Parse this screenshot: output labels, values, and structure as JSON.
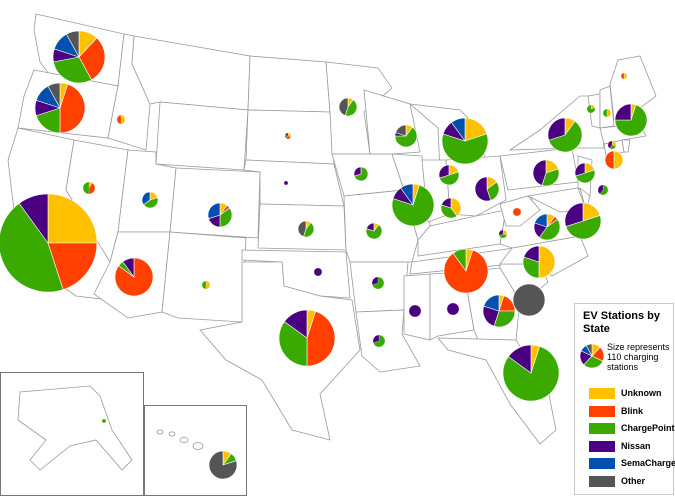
{
  "legend": {
    "title": "EV Stations by State",
    "size_note": "Size represents 110 charging stations",
    "items": [
      {
        "label": "Unknown",
        "color": "#FFC000"
      },
      {
        "label": "Blink",
        "color": "#FF4000"
      },
      {
        "label": "ChargePoint",
        "color": "#3AAA00"
      },
      {
        "label": "Nissan",
        "color": "#4B0082"
      },
      {
        "label": "SemaCharge",
        "color": "#0050B0"
      },
      {
        "label": "Other",
        "color": "#555555"
      }
    ]
  },
  "chart_data": {
    "type": "pie",
    "categories": [
      "Unknown",
      "Blink",
      "ChargePoint",
      "Nissan",
      "SemaCharge",
      "Other"
    ],
    "legend_position": "bottom-right",
    "reference_size_stations": 110,
    "states": [
      {
        "state": "WA",
        "values": [
          12,
          30,
          30,
          8,
          12,
          8
        ]
      },
      {
        "state": "OR",
        "values": [
          5,
          45,
          20,
          10,
          12,
          8
        ]
      },
      {
        "state": "CA",
        "values": [
          25,
          20,
          45,
          10,
          0,
          0
        ]
      },
      {
        "state": "AZ",
        "values": [
          0,
          85,
          5,
          10,
          0,
          0
        ]
      },
      {
        "state": "TX",
        "values": [
          5,
          45,
          35,
          15,
          0,
          0
        ]
      },
      {
        "state": "FL",
        "values": [
          5,
          0,
          80,
          15,
          0,
          0
        ]
      },
      {
        "state": "TN",
        "values": [
          5,
          85,
          10,
          0,
          0,
          0
        ]
      },
      {
        "state": "GA",
        "values": [
          5,
          20,
          30,
          25,
          20,
          0
        ]
      },
      {
        "state": "SC",
        "values": [
          0,
          0,
          0,
          0,
          0,
          100
        ]
      },
      {
        "state": "NC",
        "values": [
          50,
          0,
          30,
          20,
          0,
          0
        ]
      },
      {
        "state": "VA",
        "values": [
          10,
          5,
          45,
          20,
          20,
          0
        ]
      },
      {
        "state": "IL",
        "values": [
          5,
          0,
          75,
          10,
          10,
          0
        ]
      },
      {
        "state": "MI",
        "values": [
          20,
          0,
          60,
          10,
          10,
          0
        ]
      },
      {
        "state": "NY",
        "values": [
          10,
          0,
          60,
          30,
          0,
          0
        ]
      },
      {
        "state": "MA",
        "values": [
          5,
          0,
          70,
          25,
          0,
          0
        ]
      },
      {
        "state": "CO",
        "values": [
          10,
          5,
          35,
          20,
          30,
          0
        ]
      },
      {
        "state": "KY",
        "values": [
          40,
          0,
          40,
          20,
          0,
          0
        ]
      },
      {
        "state": "WI",
        "values": [
          10,
          0,
          65,
          5,
          0,
          20
        ]
      },
      {
        "state": "IN",
        "values": [
          20,
          0,
          50,
          30,
          0,
          0
        ]
      },
      {
        "state": "OH",
        "values": [
          15,
          0,
          30,
          55,
          0,
          0
        ]
      },
      {
        "state": "PA",
        "values": [
          20,
          0,
          35,
          45,
          0,
          0
        ]
      },
      {
        "state": "NJ",
        "values": [
          20,
          0,
          50,
          30,
          0,
          0
        ]
      },
      {
        "state": "MD",
        "values": [
          20,
          0,
          50,
          30,
          0,
          0
        ]
      },
      {
        "state": "HI",
        "values": [
          10,
          0,
          10,
          0,
          0,
          80
        ]
      },
      {
        "state": "MN",
        "values": [
          10,
          0,
          45,
          0,
          0,
          45
        ]
      },
      {
        "state": "MO",
        "values": [
          10,
          0,
          70,
          20,
          0,
          0
        ]
      },
      {
        "state": "KS",
        "values": [
          10,
          0,
          45,
          0,
          0,
          45
        ]
      },
      {
        "state": "UT",
        "values": [
          20,
          0,
          45,
          0,
          35,
          0
        ]
      },
      {
        "state": "ID",
        "values": [
          50,
          50,
          0,
          0,
          0,
          0
        ]
      },
      {
        "state": "NV",
        "values": [
          10,
          40,
          50,
          0,
          0,
          0
        ]
      },
      {
        "state": "NM",
        "values": [
          50,
          0,
          50,
          0,
          0,
          0
        ]
      },
      {
        "state": "OK",
        "values": [
          0,
          0,
          0,
          100,
          0,
          0
        ]
      },
      {
        "state": "AR",
        "values": [
          0,
          0,
          70,
          30,
          0,
          0
        ]
      },
      {
        "state": "LA",
        "values": [
          0,
          0,
          70,
          30,
          0,
          0
        ]
      },
      {
        "state": "MS",
        "values": [
          0,
          0,
          0,
          100,
          0,
          0
        ]
      },
      {
        "state": "AL",
        "values": [
          0,
          0,
          0,
          100,
          0,
          0
        ]
      },
      {
        "state": "IA",
        "values": [
          0,
          0,
          70,
          30,
          0,
          0
        ]
      },
      {
        "state": "NE",
        "values": [
          0,
          0,
          0,
          100,
          0,
          0
        ]
      },
      {
        "state": "SD",
        "values": [
          30,
          30,
          20,
          20,
          0,
          0
        ]
      },
      {
        "state": "WV",
        "values": [
          0,
          100,
          0,
          0,
          0,
          0
        ]
      },
      {
        "state": "VT",
        "values": [
          20,
          0,
          80,
          0,
          0,
          0
        ]
      },
      {
        "state": "NH",
        "values": [
          50,
          0,
          50,
          0,
          0,
          0
        ]
      },
      {
        "state": "ME",
        "values": [
          50,
          50,
          0,
          0,
          0,
          0
        ]
      },
      {
        "state": "CT",
        "values": [
          30,
          0,
          30,
          40,
          0,
          0
        ]
      },
      {
        "state": "RI",
        "values": [
          50,
          50,
          0,
          0,
          0,
          0
        ]
      },
      {
        "state": "MT",
        "values": [
          50,
          50,
          0,
          0,
          0,
          0
        ]
      },
      {
        "state": "DE",
        "values": [
          0,
          0,
          60,
          40,
          0,
          0
        ]
      },
      {
        "state": "DC",
        "values": [
          30,
          0,
          40,
          30,
          0,
          0
        ]
      },
      {
        "state": "AK",
        "values": [
          0,
          0,
          100,
          0,
          0,
          0
        ]
      }
    ]
  }
}
